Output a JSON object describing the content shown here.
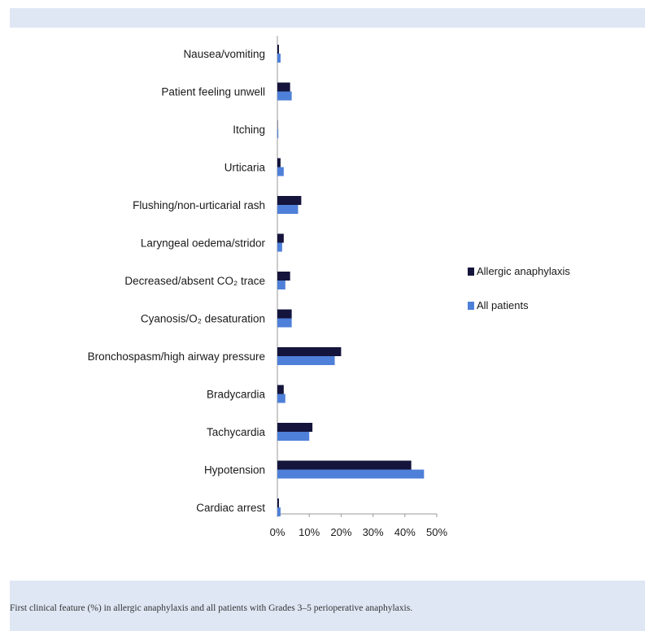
{
  "caption": "First clinical feature (%) in allergic anaphylaxis and all patients with Grades 3–5 perioperative anaphylaxis.",
  "colors": {
    "allergic": "#14143c",
    "all": "#4f80d9",
    "band": "#dfe7f4",
    "axis": "#9a9a9a",
    "text": "#1a1a1a"
  },
  "chart_data": {
    "type": "bar",
    "orientation": "horizontal",
    "categories": [
      "Nausea/vomiting",
      "Patient feeling unwell",
      "Itching",
      "Urticaria",
      "Flushing/non-urticarial rash",
      "Laryngeal oedema/stridor",
      "Decreased/absent CO₂ trace",
      "Cyanosis/O₂ desaturation",
      "Bronchospasm/high airway pressure",
      "Bradycardia",
      "Tachycardia",
      "Hypotension",
      "Cardiac arrest"
    ],
    "series": [
      {
        "name": "Allergic anaphylaxis",
        "values": [
          0.5,
          4,
          0,
          1,
          7.5,
          2,
          4,
          4.5,
          20,
          2,
          11,
          42,
          0.5
        ]
      },
      {
        "name": "All patients",
        "values": [
          1,
          4.5,
          0.3,
          2,
          6.5,
          1.5,
          2.5,
          4.5,
          18,
          2.5,
          10,
          46,
          1
        ]
      }
    ],
    "xlim": [
      0,
      50
    ],
    "xticks": [
      "0%",
      "10%",
      "20%",
      "30%",
      "40%",
      "50%"
    ],
    "legend_position": "right",
    "grid": false
  }
}
